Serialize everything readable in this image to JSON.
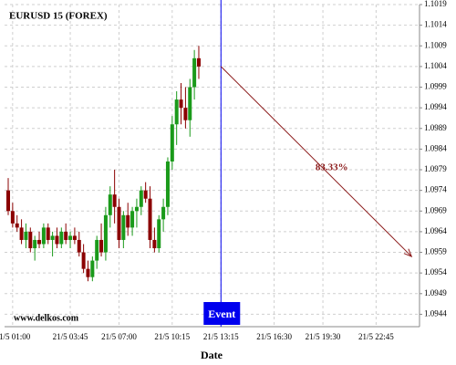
{
  "chart_data": {
    "type": "candlestick",
    "title": "EURUSD 15 (FOREX)",
    "x_label": "Date",
    "watermark": "www.delkos.com",
    "event_label": "Event",
    "categories": [
      null,
      "21/5 01:00",
      null,
      null,
      null,
      null,
      null,
      null,
      null,
      null,
      null,
      null,
      null,
      null,
      "21/5 03:45",
      null,
      null,
      null,
      null,
      null,
      null,
      null,
      null,
      null,
      null,
      "21/5 07:00",
      null,
      null,
      null,
      null,
      null,
      null,
      null,
      null,
      null,
      null,
      null,
      "21/5 10:15",
      null,
      null,
      null,
      null,
      null,
      null,
      null,
      null,
      null,
      null,
      "21/5 13:15",
      null,
      null,
      null,
      null,
      null,
      null,
      null,
      null,
      null,
      null,
      null,
      "21/5 16:30",
      null,
      null,
      null,
      null,
      null,
      null,
      null,
      null,
      null,
      null,
      "21/5 19:30",
      null,
      null,
      null,
      null,
      null,
      null,
      null,
      null,
      null,
      null,
      null,
      "21/5 22:45",
      null,
      null,
      null,
      null,
      null,
      null,
      null,
      null,
      null
    ],
    "open": [
      1.0974,
      1.0969,
      1.0966,
      1.0965,
      1.0962,
      1.0964,
      1.096,
      1.0962,
      1.0961,
      1.0965,
      1.0962,
      1.0963,
      1.0961,
      1.0964,
      1.0962,
      1.0963,
      1.0962,
      1.0959,
      1.0955,
      1.0953,
      1.0957,
      1.0962,
      1.0959,
      1.0968,
      1.0973,
      1.097,
      1.0962,
      1.0968,
      1.0965,
      1.0969,
      1.097,
      1.0974,
      1.0972,
      1.0962,
      1.096,
      1.0967,
      1.097,
      1.0981,
      1.099,
      1.0996,
      1.0994,
      1.0991,
      1.0999,
      1.1006,
      null,
      null,
      null,
      null,
      null,
      null,
      null,
      null,
      null,
      null,
      null,
      null,
      null,
      null,
      null,
      null,
      null,
      null,
      null,
      null,
      null,
      null,
      null,
      null,
      null,
      null,
      null,
      null,
      null,
      null,
      null,
      null,
      null,
      null,
      null,
      null,
      null,
      null,
      null,
      null,
      null,
      null,
      null,
      null,
      null,
      null,
      null,
      null,
      null
    ],
    "high": [
      1.0977,
      1.0971,
      1.0968,
      1.0967,
      1.0966,
      1.0965,
      1.0963,
      1.0964,
      1.0966,
      1.0966,
      1.0964,
      1.0965,
      1.0965,
      1.0966,
      1.0964,
      1.0965,
      1.0964,
      1.0961,
      1.0957,
      1.0958,
      1.0963,
      1.0966,
      1.097,
      1.0975,
      1.0979,
      1.0972,
      1.0969,
      1.0971,
      1.097,
      1.0972,
      1.0975,
      1.0976,
      1.0975,
      1.0965,
      1.0968,
      1.0972,
      1.0982,
      1.0992,
      1.0998,
      1.1,
      1.0999,
      1.1001,
      1.1008,
      1.1009,
      null,
      null,
      null,
      null,
      null,
      null,
      null,
      null,
      null,
      null,
      null,
      null,
      null,
      null,
      null,
      null,
      null,
      null,
      null,
      null,
      null,
      null,
      null,
      null,
      null,
      null,
      null,
      null,
      null,
      null,
      null,
      null,
      null,
      null,
      null,
      null,
      null,
      null,
      null,
      null,
      null,
      null,
      null,
      null,
      null,
      null,
      null,
      null,
      null
    ],
    "low": [
      1.0968,
      1.0965,
      1.0964,
      1.0961,
      1.096,
      1.0959,
      1.0957,
      1.096,
      1.096,
      1.0961,
      1.0958,
      1.096,
      1.096,
      1.0961,
      1.096,
      1.0961,
      1.0958,
      1.0954,
      1.0952,
      1.0952,
      1.0955,
      1.0958,
      1.0957,
      1.0965,
      1.0966,
      1.096,
      1.096,
      1.0963,
      1.0963,
      1.0965,
      1.0968,
      1.0971,
      1.096,
      1.0959,
      1.0959,
      1.0964,
      1.0968,
      1.0979,
      1.0985,
      1.099,
      1.0989,
      1.0987,
      1.0996,
      1.1001,
      null,
      null,
      null,
      null,
      null,
      null,
      null,
      null,
      null,
      null,
      null,
      null,
      null,
      null,
      null,
      null,
      null,
      null,
      null,
      null,
      null,
      null,
      null,
      null,
      null,
      null,
      null,
      null,
      null,
      null,
      null,
      null,
      null,
      null,
      null,
      null,
      null,
      null,
      null,
      null,
      null,
      null,
      null,
      null,
      null,
      null,
      null,
      null,
      null
    ],
    "close": [
      1.0969,
      1.0966,
      1.0965,
      1.0962,
      1.0964,
      1.096,
      1.0962,
      1.0961,
      1.0965,
      1.0962,
      1.0963,
      1.0961,
      1.0964,
      1.0962,
      1.0963,
      1.0962,
      1.0959,
      1.0955,
      1.0953,
      1.0957,
      1.0962,
      1.0959,
      1.0968,
      1.0973,
      1.097,
      1.0962,
      1.0968,
      1.0965,
      1.0969,
      1.097,
      1.0974,
      1.0972,
      1.0962,
      1.096,
      1.0967,
      1.097,
      1.0981,
      1.099,
      1.0996,
      1.0994,
      1.0991,
      1.0999,
      1.1006,
      1.1004,
      null,
      null,
      null,
      null,
      null,
      null,
      null,
      null,
      null,
      null,
      null,
      null,
      null,
      null,
      null,
      null,
      null,
      null,
      null,
      null,
      null,
      null,
      null,
      null,
      null,
      null,
      null,
      null,
      null,
      null,
      null,
      null,
      null,
      null,
      null,
      null,
      null,
      null,
      null,
      null,
      null,
      null,
      null,
      null,
      null,
      null,
      null,
      null,
      null
    ],
    "up_color": "#1a9a1a",
    "down_color": "#8b0000",
    "prediction": {
      "start": 1.1004,
      "end": 1.0958,
      "label": "83.33%",
      "color": "#8b1a1a"
    },
    "event_color": "#0000ee",
    "ylim": [
      1.0941,
      1.1019
    ],
    "yticks": [
      1.1019,
      1.1014,
      1.1009,
      1.1004,
      1.0999,
      1.0994,
      1.0989,
      1.0984,
      1.0979,
      1.0974,
      1.0969,
      1.0964,
      1.0959,
      1.0954,
      1.0949,
      1.0944
    ],
    "grid": true
  }
}
